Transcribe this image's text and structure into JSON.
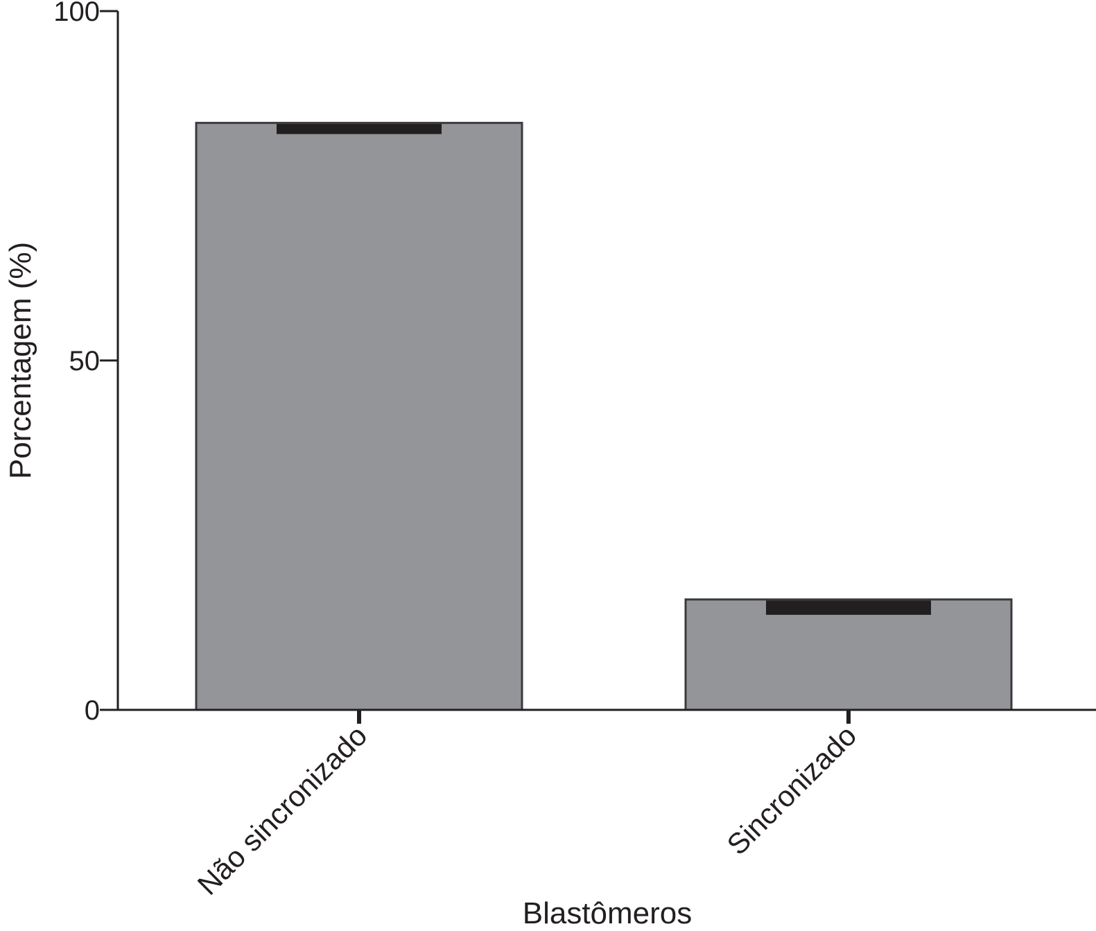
{
  "chart_data": {
    "type": "bar",
    "title": "",
    "xlabel": "Blastômeros",
    "ylabel": "Porcentagem (%)",
    "categories": [
      "Não sincronizado",
      "Sincronizado"
    ],
    "values": [
      84,
      15.8
    ],
    "error_low": [
      82.4,
      13.6
    ],
    "ylim": [
      0,
      100
    ],
    "yticks": [
      0,
      50,
      100
    ],
    "ytick_labels": [
      "0",
      "50",
      "100"
    ],
    "grid": false,
    "legend": "none",
    "colors": {
      "bar_fill": "#939598",
      "bar_stroke": "#3a3a3c",
      "error_bar": "#231f20",
      "axis": "#231f20"
    }
  }
}
